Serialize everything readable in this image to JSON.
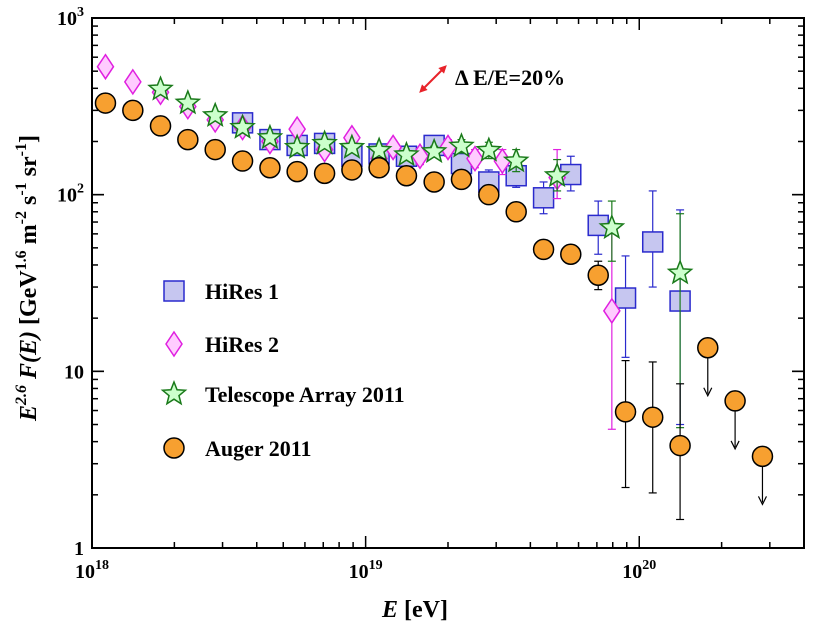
{
  "chart_data": {
    "type": "scatter",
    "xscale": "log",
    "yscale": "log",
    "xlim": [
      1e+18,
      4e+20
    ],
    "ylim": [
      1,
      1000
    ],
    "grid": false,
    "legend_position": "left",
    "xlabel": {
      "main": "E",
      "unit": " [eV]"
    },
    "ylabel": {
      "pre": "E",
      "pre_sup": "2.6",
      "func": " F(E)",
      "unit_a": " [GeV",
      "sup_a": "1.6",
      "unit_b": " m",
      "sup_b": "-2",
      "unit_c": " s",
      "sup_c": "-1",
      "unit_d": " sr",
      "sup_d": "-1",
      "unit_e": "]"
    },
    "x_ticks": [
      {
        "value": 1e+18,
        "base": "10",
        "exp": "18"
      },
      {
        "value": 1e+19,
        "base": "10",
        "exp": "19"
      },
      {
        "value": 1e+20,
        "base": "10",
        "exp": "20"
      }
    ],
    "y_ticks": [
      {
        "value": 1,
        "base": "1",
        "exp": ""
      },
      {
        "value": 10,
        "base": "10",
        "exp": ""
      },
      {
        "value": 100,
        "base": "10",
        "exp": "2"
      },
      {
        "value": 1000,
        "base": "10",
        "exp": "3"
      }
    ],
    "annotation": {
      "text": "Δ E/E=20%",
      "arrow_color": "#e8232a"
    },
    "series": [
      {
        "name": "HiRes 1",
        "marker": "square",
        "fill": "#c6c6f0",
        "stroke": "#2a2acd",
        "points": [
          {
            "x": 3.55e+18,
            "y": 255,
            "lo": 235,
            "hi": 275
          },
          {
            "x": 4.47e+18,
            "y": 205,
            "lo": 190,
            "hi": 220
          },
          {
            "x": 5.62e+18,
            "y": 190,
            "lo": 175,
            "hi": 205
          },
          {
            "x": 7.08e+18,
            "y": 195,
            "lo": 180,
            "hi": 210
          },
          {
            "x": 8.91e+18,
            "y": 165,
            "lo": 150,
            "hi": 180
          },
          {
            "x": 1.12e+19,
            "y": 170,
            "lo": 155,
            "hi": 188
          },
          {
            "x": 1.41e+19,
            "y": 165,
            "lo": 150,
            "hi": 182
          },
          {
            "x": 1.78e+19,
            "y": 190,
            "lo": 172,
            "hi": 210
          },
          {
            "x": 2.24e+19,
            "y": 150,
            "lo": 133,
            "hi": 170
          },
          {
            "x": 2.82e+19,
            "y": 118,
            "lo": 102,
            "hi": 138
          },
          {
            "x": 3.55e+19,
            "y": 128,
            "lo": 110,
            "hi": 150
          },
          {
            "x": 4.47e+19,
            "y": 96,
            "lo": 78,
            "hi": 118
          },
          {
            "x": 5.62e+19,
            "y": 130,
            "lo": 105,
            "hi": 165
          },
          {
            "x": 7.08e+19,
            "y": 67,
            "lo": 46,
            "hi": 92
          },
          {
            "x": 8.91e+19,
            "y": 26,
            "lo": 12,
            "hi": 45
          },
          {
            "x": 1.12e+20,
            "y": 54,
            "lo": 30,
            "hi": 105
          },
          {
            "x": 1.41e+20,
            "y": 25,
            "lo": 5,
            "hi": 82
          }
        ]
      },
      {
        "name": "HiRes 2",
        "marker": "diamond",
        "fill": "#ffccff",
        "stroke": "#e020e0",
        "points": [
          {
            "x": 1.12e+18,
            "y": 530,
            "lo": null,
            "hi": null
          },
          {
            "x": 1.41e+18,
            "y": 435,
            "lo": null,
            "hi": null
          },
          {
            "x": 1.78e+18,
            "y": 380,
            "lo": null,
            "hi": null
          },
          {
            "x": 2.24e+18,
            "y": 315,
            "lo": null,
            "hi": null
          },
          {
            "x": 2.82e+18,
            "y": 265,
            "lo": null,
            "hi": null
          },
          {
            "x": 3.55e+18,
            "y": 240,
            "lo": null,
            "hi": null
          },
          {
            "x": 4.47e+18,
            "y": 200,
            "lo": null,
            "hi": null
          },
          {
            "x": 5.62e+18,
            "y": 235,
            "lo": 220,
            "hi": 250
          },
          {
            "x": 7.08e+18,
            "y": 180,
            "lo": 165,
            "hi": 195
          },
          {
            "x": 8.91e+18,
            "y": 210,
            "lo": 195,
            "hi": 228
          },
          {
            "x": 1.12e+19,
            "y": 160,
            "lo": 145,
            "hi": 175
          },
          {
            "x": 1.26e+19,
            "y": 185,
            "lo": 168,
            "hi": 202
          },
          {
            "x": 1.58e+19,
            "y": 165,
            "lo": 148,
            "hi": 182
          },
          {
            "x": 2e+19,
            "y": 185,
            "lo": 165,
            "hi": 205
          },
          {
            "x": 2.51e+19,
            "y": 160,
            "lo": 142,
            "hi": 180
          },
          {
            "x": 3.16e+19,
            "y": 155,
            "lo": 130,
            "hi": 180
          },
          {
            "x": 5.01e+19,
            "y": 125,
            "lo": 95,
            "hi": 180
          },
          {
            "x": 7.94e+19,
            "y": 22,
            "lo": 4.7,
            "hi": 62
          }
        ]
      },
      {
        "name": "Telescope Array 2011",
        "marker": "star",
        "fill": "#ccffcc",
        "stroke": "#1a7a1a",
        "points": [
          {
            "x": 1.78e+18,
            "y": 395,
            "lo": null,
            "hi": null
          },
          {
            "x": 2.24e+18,
            "y": 330,
            "lo": null,
            "hi": null
          },
          {
            "x": 2.82e+18,
            "y": 280,
            "lo": null,
            "hi": null
          },
          {
            "x": 3.55e+18,
            "y": 240,
            "lo": null,
            "hi": null
          },
          {
            "x": 4.47e+18,
            "y": 210,
            "lo": null,
            "hi": null
          },
          {
            "x": 5.62e+18,
            "y": 185,
            "lo": null,
            "hi": null
          },
          {
            "x": 7.08e+18,
            "y": 195,
            "lo": null,
            "hi": null
          },
          {
            "x": 8.91e+18,
            "y": 185,
            "lo": null,
            "hi": null
          },
          {
            "x": 1.12e+19,
            "y": 178,
            "lo": null,
            "hi": null
          },
          {
            "x": 1.41e+19,
            "y": 168,
            "lo": null,
            "hi": null
          },
          {
            "x": 1.78e+19,
            "y": 175,
            "lo": 163,
            "hi": 188
          },
          {
            "x": 2.24e+19,
            "y": 188,
            "lo": 172,
            "hi": 205
          },
          {
            "x": 2.82e+19,
            "y": 178,
            "lo": 160,
            "hi": 198
          },
          {
            "x": 3.55e+19,
            "y": 155,
            "lo": 135,
            "hi": 180
          },
          {
            "x": 5.01e+19,
            "y": 128,
            "lo": 105,
            "hi": 158
          },
          {
            "x": 7.94e+19,
            "y": 65,
            "lo": 42,
            "hi": 92
          },
          {
            "x": 1.41e+20,
            "y": 36,
            "lo": 4.8,
            "hi": 78
          }
        ]
      },
      {
        "name": "Auger 2011",
        "marker": "circle",
        "fill": "#f7a030",
        "stroke": "#000000",
        "points": [
          {
            "x": 1.12e+18,
            "y": 330,
            "lo": null,
            "hi": null,
            "ul": false
          },
          {
            "x": 1.41e+18,
            "y": 300,
            "lo": null,
            "hi": null,
            "ul": false
          },
          {
            "x": 1.78e+18,
            "y": 245,
            "lo": null,
            "hi": null,
            "ul": false
          },
          {
            "x": 2.24e+18,
            "y": 205,
            "lo": null,
            "hi": null,
            "ul": false
          },
          {
            "x": 2.82e+18,
            "y": 180,
            "lo": null,
            "hi": null,
            "ul": false
          },
          {
            "x": 3.55e+18,
            "y": 155,
            "lo": null,
            "hi": null,
            "ul": false
          },
          {
            "x": 4.47e+18,
            "y": 142,
            "lo": null,
            "hi": null,
            "ul": false
          },
          {
            "x": 5.62e+18,
            "y": 135,
            "lo": null,
            "hi": null,
            "ul": false
          },
          {
            "x": 7.08e+18,
            "y": 132,
            "lo": null,
            "hi": null,
            "ul": false
          },
          {
            "x": 8.91e+18,
            "y": 138,
            "lo": null,
            "hi": null,
            "ul": false
          },
          {
            "x": 1.12e+19,
            "y": 142,
            "lo": null,
            "hi": null,
            "ul": false
          },
          {
            "x": 1.41e+19,
            "y": 128,
            "lo": null,
            "hi": null,
            "ul": false
          },
          {
            "x": 1.78e+19,
            "y": 118,
            "lo": null,
            "hi": null,
            "ul": false
          },
          {
            "x": 2.24e+19,
            "y": 122,
            "lo": null,
            "hi": null,
            "ul": false
          },
          {
            "x": 2.82e+19,
            "y": 100,
            "lo": null,
            "hi": null,
            "ul": false
          },
          {
            "x": 3.55e+19,
            "y": 80,
            "lo": null,
            "hi": null,
            "ul": false
          },
          {
            "x": 4.47e+19,
            "y": 49,
            "lo": null,
            "hi": null,
            "ul": false
          },
          {
            "x": 5.62e+19,
            "y": 46,
            "lo": null,
            "hi": null,
            "ul": false
          },
          {
            "x": 7.08e+19,
            "y": 35,
            "lo": 29,
            "hi": 42,
            "ul": false
          },
          {
            "x": 8.91e+19,
            "y": 5.9,
            "lo": 2.2,
            "hi": 11.5,
            "ul": false
          },
          {
            "x": 1.12e+20,
            "y": 5.5,
            "lo": 2.05,
            "hi": 11.3,
            "ul": false
          },
          {
            "x": 1.41e+20,
            "y": 3.8,
            "lo": 1.45,
            "hi": 8.5,
            "ul": false
          },
          {
            "x": 1.78e+20,
            "y": 13.6,
            "lo": null,
            "hi": null,
            "ul": true
          },
          {
            "x": 2.24e+20,
            "y": 6.8,
            "lo": null,
            "hi": null,
            "ul": true
          },
          {
            "x": 2.82e+20,
            "y": 3.3,
            "lo": null,
            "hi": null,
            "ul": true
          }
        ]
      }
    ]
  }
}
